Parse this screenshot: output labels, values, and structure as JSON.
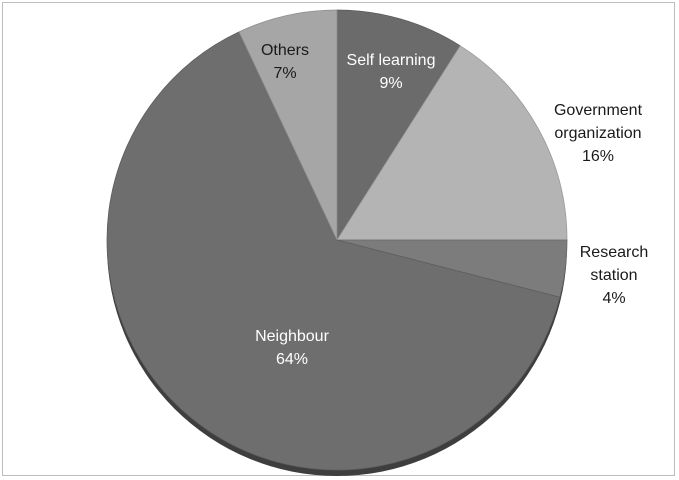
{
  "chart_data": {
    "type": "pie",
    "title": "",
    "slices": [
      {
        "label": "Self learning",
        "value": 9,
        "value_label": "9%",
        "color": "#6b6b6b",
        "label_color": "#ffffff",
        "label_pos": "inside"
      },
      {
        "label": "Government organization",
        "value": 16,
        "value_label": "16%",
        "color": "#b4b4b4",
        "label_color": "#1a1a1a",
        "label_pos": "outside"
      },
      {
        "label": "Research station",
        "value": 4,
        "value_label": "4%",
        "color": "#7c7c7c",
        "label_color": "#1a1a1a",
        "label_pos": "outside"
      },
      {
        "label": "Neighbour",
        "value": 64,
        "value_label": "64%",
        "color": "#6e6e6e",
        "label_color": "#ffffff",
        "label_pos": "inside"
      },
      {
        "label": "Others",
        "value": 7,
        "value_label": "7%",
        "color": "#a6a6a6",
        "label_color": "#1a1a1a",
        "label_pos": "inside"
      }
    ],
    "legend": "none",
    "style": "3d-grayscale"
  }
}
